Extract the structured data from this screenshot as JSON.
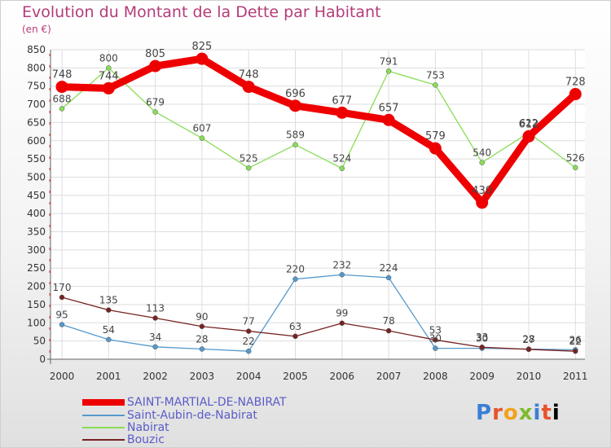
{
  "title": "Evolution du Montant de la Dette par Habitant",
  "unit": "(en €)",
  "logo": "Proxiti",
  "chart_data": {
    "type": "line",
    "x": [
      "2000",
      "2001",
      "2002",
      "2003",
      "2004",
      "2005",
      "2006",
      "2007",
      "2008",
      "2009",
      "2010",
      "2011"
    ],
    "ylim": [
      0,
      850
    ],
    "yticks": [
      0,
      50,
      100,
      150,
      200,
      250,
      300,
      350,
      400,
      450,
      500,
      550,
      600,
      650,
      700,
      750,
      800,
      850
    ],
    "grid": true,
    "legend": "bottom-left",
    "series": [
      {
        "name": "SAINT-MARTIAL-DE-NABIRAT",
        "color": "#ee0000",
        "values": [
          748,
          744,
          805,
          825,
          748,
          696,
          677,
          657,
          579,
          430,
          612,
          728
        ]
      },
      {
        "name": "Saint-Aubin-de-Nabirat",
        "color": "#5599cc",
        "values": [
          95,
          54,
          34,
          28,
          22,
          220,
          232,
          224,
          30,
          30,
          28,
          26
        ]
      },
      {
        "name": "Nabirat",
        "color": "#88dd55",
        "values": [
          688,
          800,
          679,
          607,
          525,
          589,
          524,
          791,
          753,
          540,
          622,
          526
        ]
      },
      {
        "name": "Bouzic",
        "color": "#772222",
        "values": [
          170,
          135,
          113,
          90,
          77,
          63,
          99,
          78,
          53,
          33,
          27,
          22
        ]
      }
    ]
  }
}
